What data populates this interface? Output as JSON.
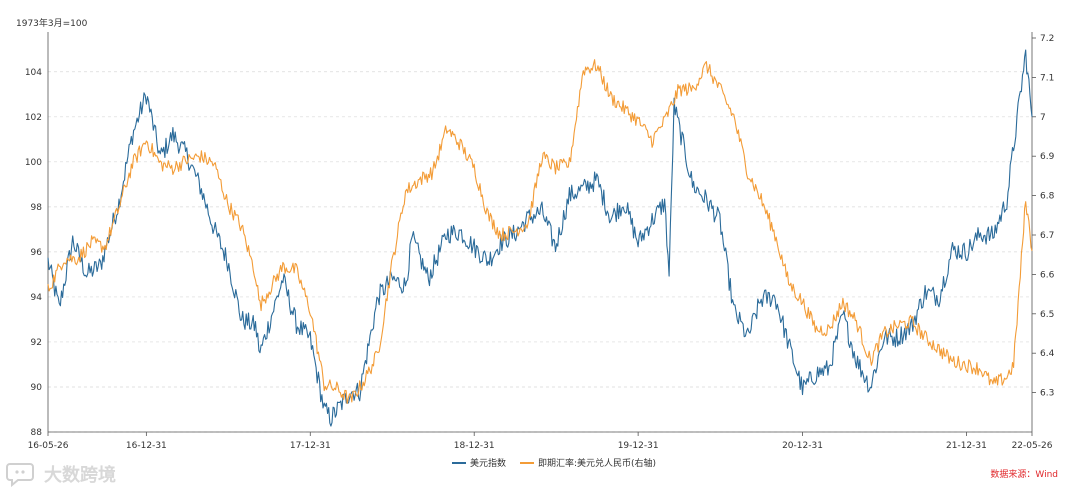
{
  "chart_data": {
    "type": "line",
    "y_unit_label": "1973年3月=100",
    "ylim_left": [
      88,
      105.5
    ],
    "yticks_left": [
      "88",
      "90",
      "92",
      "94",
      "96",
      "98",
      "100",
      "102",
      "104"
    ],
    "ylim_right": [
      6.2,
      7.2
    ],
    "yticks_right": [
      "6.3",
      "6.4",
      "6.5",
      "6.6",
      "6.7",
      "6.8",
      "6.9",
      "7",
      "7.1",
      "7.2"
    ],
    "x_start": "2016-05-26",
    "x_end": "2022-05-26",
    "xticks": [
      "16-05-26",
      "16-12-31",
      "17-12-31",
      "18-12-31",
      "19-12-31",
      "20-12-31",
      "21-12-31",
      "22-05-26"
    ],
    "grid": true,
    "legend_position": "bottom-center",
    "series": [
      {
        "name": "美元指数",
        "axis": "left",
        "color": "#2b6b9a",
        "points": [
          [
            "2016-05-26",
            95.6
          ],
          [
            "2016-06-20",
            93.5
          ],
          [
            "2016-07-20",
            96.5
          ],
          [
            "2016-08-20",
            95.0
          ],
          [
            "2016-09-20",
            95.4
          ],
          [
            "2016-10-31",
            98.2
          ],
          [
            "2016-11-30",
            101.2
          ],
          [
            "2016-12-31",
            103.0
          ],
          [
            "2017-01-31",
            100.2
          ],
          [
            "2017-02-28",
            101.2
          ],
          [
            "2017-03-31",
            100.3
          ],
          [
            "2017-04-30",
            98.9
          ],
          [
            "2017-05-31",
            97.0
          ],
          [
            "2017-06-30",
            95.6
          ],
          [
            "2017-07-31",
            93.0
          ],
          [
            "2017-08-31",
            92.7
          ],
          [
            "2017-09-10",
            91.5
          ],
          [
            "2017-10-31",
            94.8
          ],
          [
            "2017-11-30",
            92.8
          ],
          [
            "2017-12-31",
            92.1
          ],
          [
            "2018-01-31",
            89.0
          ],
          [
            "2018-02-15",
            88.6
          ],
          [
            "2018-03-31",
            89.8
          ],
          [
            "2018-04-20",
            89.8
          ],
          [
            "2018-05-31",
            94.0
          ],
          [
            "2018-06-30",
            94.8
          ],
          [
            "2018-07-31",
            94.5
          ],
          [
            "2018-08-15",
            96.6
          ],
          [
            "2018-09-20",
            94.8
          ],
          [
            "2018-10-31",
            96.8
          ],
          [
            "2018-11-30",
            96.9
          ],
          [
            "2018-12-31",
            96.2
          ],
          [
            "2019-01-31",
            95.6
          ],
          [
            "2019-02-28",
            96.4
          ],
          [
            "2019-03-31",
            96.8
          ],
          [
            "2019-04-30",
            97.5
          ],
          [
            "2019-05-31",
            97.8
          ],
          [
            "2019-06-30",
            96.2
          ],
          [
            "2019-07-31",
            98.5
          ],
          [
            "2019-08-31",
            98.8
          ],
          [
            "2019-09-30",
            99.2
          ],
          [
            "2019-10-31",
            97.5
          ],
          [
            "2019-11-30",
            98.2
          ],
          [
            "2019-12-31",
            96.4
          ],
          [
            "2020-01-31",
            97.4
          ],
          [
            "2020-02-28",
            98.2
          ],
          [
            "2020-03-09",
            95.0
          ],
          [
            "2020-03-20",
            102.5
          ],
          [
            "2020-04-30",
            99.0
          ],
          [
            "2020-05-31",
            98.3
          ],
          [
            "2020-06-30",
            97.4
          ],
          [
            "2020-07-31",
            93.4
          ],
          [
            "2020-08-31",
            92.2
          ],
          [
            "2020-09-30",
            93.9
          ],
          [
            "2020-10-31",
            94.0
          ],
          [
            "2020-11-30",
            91.9
          ],
          [
            "2020-12-31",
            89.9
          ],
          [
            "2021-01-31",
            90.6
          ],
          [
            "2021-02-28",
            90.8
          ],
          [
            "2021-03-31",
            93.2
          ],
          [
            "2021-04-30",
            91.2
          ],
          [
            "2021-05-31",
            90.0
          ],
          [
            "2021-06-30",
            92.2
          ],
          [
            "2021-07-31",
            92.2
          ],
          [
            "2021-08-31",
            92.7
          ],
          [
            "2021-09-30",
            94.2
          ],
          [
            "2021-10-31",
            94.0
          ],
          [
            "2021-11-30",
            96.1
          ],
          [
            "2021-12-31",
            96.0
          ],
          [
            "2022-01-31",
            96.8
          ],
          [
            "2022-02-28",
            96.7
          ],
          [
            "2022-03-31",
            98.3
          ],
          [
            "2022-04-30",
            103.0
          ],
          [
            "2022-05-12",
            104.8
          ],
          [
            "2022-05-26",
            102.0
          ]
        ]
      },
      {
        "name": "即期汇率:美元兑人民币(右轴)",
        "axis": "right",
        "color": "#f39c37",
        "points": [
          [
            "2016-05-26",
            6.56
          ],
          [
            "2016-06-30",
            6.64
          ],
          [
            "2016-07-31",
            6.64
          ],
          [
            "2016-08-31",
            6.68
          ],
          [
            "2016-09-30",
            6.67
          ],
          [
            "2016-10-31",
            6.77
          ],
          [
            "2016-11-30",
            6.88
          ],
          [
            "2016-12-31",
            6.94
          ],
          [
            "2017-01-31",
            6.88
          ],
          [
            "2017-02-28",
            6.87
          ],
          [
            "2017-03-31",
            6.89
          ],
          [
            "2017-04-30",
            6.9
          ],
          [
            "2017-05-31",
            6.88
          ],
          [
            "2017-06-30",
            6.78
          ],
          [
            "2017-07-31",
            6.72
          ],
          [
            "2017-08-31",
            6.6
          ],
          [
            "2017-09-10",
            6.52
          ],
          [
            "2017-10-31",
            6.62
          ],
          [
            "2017-11-30",
            6.61
          ],
          [
            "2017-12-31",
            6.51
          ],
          [
            "2018-01-31",
            6.32
          ],
          [
            "2018-02-28",
            6.31
          ],
          [
            "2018-03-31",
            6.28
          ],
          [
            "2018-04-30",
            6.33
          ],
          [
            "2018-05-31",
            6.4
          ],
          [
            "2018-06-30",
            6.62
          ],
          [
            "2018-07-31",
            6.81
          ],
          [
            "2018-08-31",
            6.84
          ],
          [
            "2018-09-30",
            6.86
          ],
          [
            "2018-10-31",
            6.97
          ],
          [
            "2018-11-30",
            6.93
          ],
          [
            "2018-12-31",
            6.87
          ],
          [
            "2019-01-31",
            6.75
          ],
          [
            "2019-02-28",
            6.7
          ],
          [
            "2019-03-31",
            6.71
          ],
          [
            "2019-04-30",
            6.73
          ],
          [
            "2019-05-31",
            6.9
          ],
          [
            "2019-06-30",
            6.87
          ],
          [
            "2019-07-31",
            6.88
          ],
          [
            "2019-08-31",
            7.12
          ],
          [
            "2019-09-30",
            7.13
          ],
          [
            "2019-10-31",
            7.05
          ],
          [
            "2019-11-30",
            7.02
          ],
          [
            "2019-12-31",
            6.99
          ],
          [
            "2020-01-31",
            6.94
          ],
          [
            "2020-02-28",
            6.99
          ],
          [
            "2020-03-31",
            7.07
          ],
          [
            "2020-04-30",
            7.07
          ],
          [
            "2020-05-31",
            7.13
          ],
          [
            "2020-06-30",
            7.07
          ],
          [
            "2020-07-31",
            7.0
          ],
          [
            "2020-08-31",
            6.86
          ],
          [
            "2020-09-30",
            6.79
          ],
          [
            "2020-10-31",
            6.7
          ],
          [
            "2020-11-30",
            6.58
          ],
          [
            "2020-12-31",
            6.53
          ],
          [
            "2021-01-31",
            6.46
          ],
          [
            "2021-02-28",
            6.46
          ],
          [
            "2021-03-31",
            6.53
          ],
          [
            "2021-04-30",
            6.48
          ],
          [
            "2021-05-31",
            6.38
          ],
          [
            "2021-06-30",
            6.45
          ],
          [
            "2021-07-31",
            6.47
          ],
          [
            "2021-08-31",
            6.48
          ],
          [
            "2021-09-30",
            6.44
          ],
          [
            "2021-10-31",
            6.41
          ],
          [
            "2021-11-30",
            6.38
          ],
          [
            "2021-12-31",
            6.37
          ],
          [
            "2022-01-31",
            6.36
          ],
          [
            "2022-02-28",
            6.32
          ],
          [
            "2022-03-31",
            6.34
          ],
          [
            "2022-04-15",
            6.37
          ],
          [
            "2022-04-30",
            6.6
          ],
          [
            "2022-05-12",
            6.79
          ],
          [
            "2022-05-26",
            6.66
          ]
        ]
      }
    ]
  },
  "legend": {
    "items": [
      {
        "label": "美元指数",
        "color": "#2b6b9a"
      },
      {
        "label": "即期汇率:美元兑人民币(右轴)",
        "color": "#f39c37"
      }
    ]
  },
  "source_label": "数据来源：Wind",
  "watermark_text": "大数跨境",
  "watermark_icon": "chat-bubble-icon"
}
